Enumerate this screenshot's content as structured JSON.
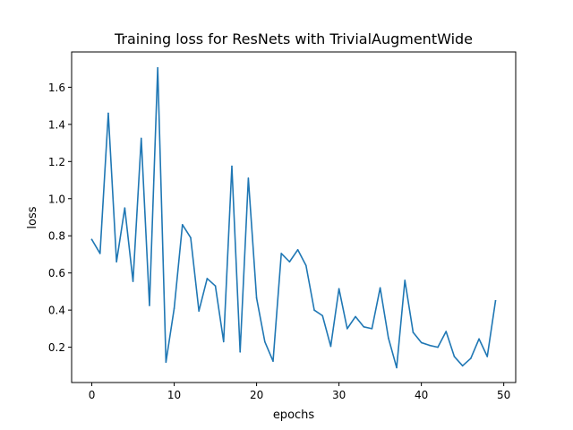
{
  "chart_data": {
    "type": "line",
    "title": "Training loss for ResNets with TrivialAugmentWide",
    "xlabel": "epochs",
    "ylabel": "loss",
    "xlim": [
      -2.45,
      51.45
    ],
    "ylim": [
      0.01,
      1.79
    ],
    "x_ticks": [
      0,
      10,
      20,
      30,
      40,
      50
    ],
    "y_ticks": [
      0.2,
      0.4,
      0.6,
      0.8,
      1.0,
      1.2,
      1.4,
      1.6
    ],
    "y_tick_labels": [
      "0.2",
      "0.4",
      "0.6",
      "0.8",
      "1.0",
      "1.2",
      "1.4",
      "1.6"
    ],
    "grid": false,
    "series": [
      {
        "color": "#1f77b4",
        "x": [
          0,
          1,
          2,
          3,
          4,
          5,
          6,
          7,
          8,
          9,
          10,
          11,
          12,
          13,
          14,
          15,
          16,
          17,
          18,
          19,
          20,
          21,
          22,
          23,
          24,
          25,
          26,
          27,
          28,
          29,
          30,
          31,
          32,
          33,
          34,
          35,
          36,
          37,
          38,
          39,
          40,
          41,
          42,
          43,
          44,
          45,
          46,
          47,
          48,
          49
        ],
        "y": [
          0.78,
          0.705,
          1.46,
          0.66,
          0.95,
          0.555,
          1.325,
          0.425,
          1.705,
          0.12,
          0.41,
          0.86,
          0.79,
          0.395,
          0.57,
          0.53,
          0.23,
          1.175,
          0.175,
          1.11,
          0.465,
          0.23,
          0.125,
          0.705,
          0.66,
          0.725,
          0.64,
          0.4,
          0.37,
          0.205,
          0.515,
          0.3,
          0.365,
          0.31,
          0.3,
          0.52,
          0.25,
          0.09,
          0.56,
          0.28,
          0.225,
          0.21,
          0.2,
          0.285,
          0.15,
          0.1,
          0.14,
          0.245,
          0.15,
          0.45
        ]
      }
    ]
  }
}
